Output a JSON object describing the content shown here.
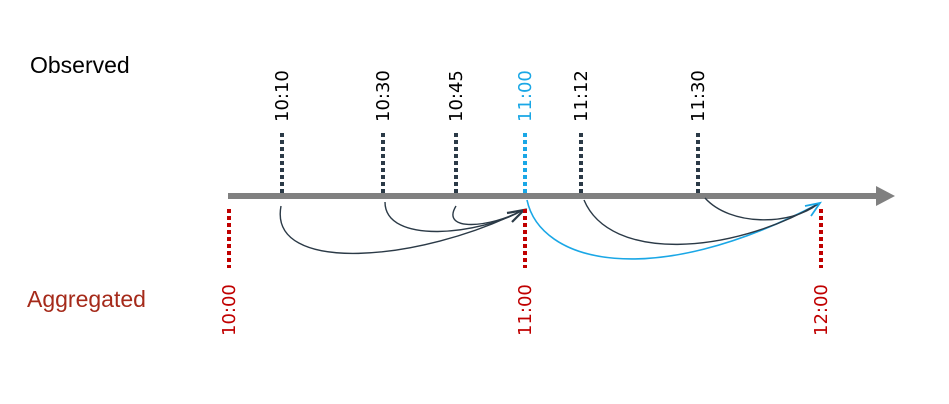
{
  "labels": {
    "observed": "Observed",
    "aggregated": "Aggregated"
  },
  "colors": {
    "axis": "#808080",
    "observed": "#2b3a47",
    "highlight": "#1aa7e6",
    "aggregated": "#c00000",
    "aggregated_label": "#a52a1a"
  },
  "observed_times": [
    {
      "label": "10:10",
      "target": "11:00",
      "highlight": false
    },
    {
      "label": "10:30",
      "target": "11:00",
      "highlight": false
    },
    {
      "label": "10:45",
      "target": "11:00",
      "highlight": false
    },
    {
      "label": "11:00",
      "target": "12:00",
      "highlight": true
    },
    {
      "label": "11:12",
      "target": "12:00",
      "highlight": false
    },
    {
      "label": "11:30",
      "target": "12:00",
      "highlight": false
    }
  ],
  "aggregated_times": [
    "10:00",
    "11:00",
    "12:00"
  ]
}
